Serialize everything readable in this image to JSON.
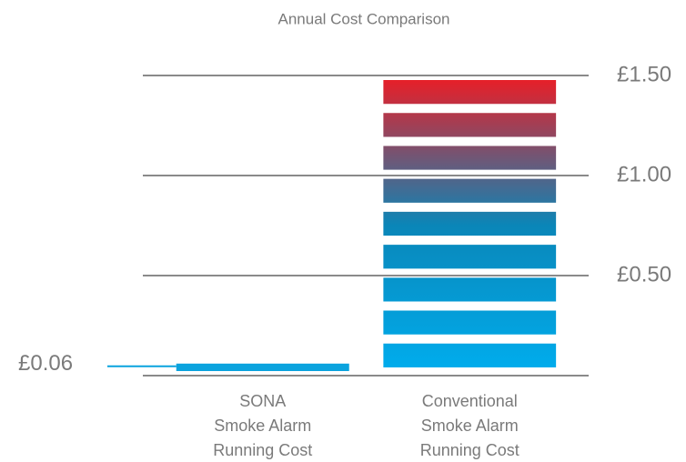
{
  "chart_data": {
    "type": "bar",
    "title": "Annual Cost Comparison",
    "categories": [
      "SONA\nSmoke Alarm\nRunning Cost",
      "Conventional\nSmoke Alarm\nRunning Cost"
    ],
    "values": [
      0.06,
      1.5
    ],
    "value_labels": [
      "£0.06",
      null
    ],
    "colors": [
      [
        "#0aa3de"
      ],
      [
        "#00aeef",
        "#0a86b8",
        "#ed1c24"
      ]
    ],
    "ylim": [
      0,
      1.5
    ],
    "yticks": [
      {
        "value": 0.5,
        "label": "£0.50"
      },
      {
        "value": 1,
        "label": "£1.00"
      },
      {
        "value": 1.5,
        "label": "£1.50"
      }
    ],
    "grid": true
  }
}
